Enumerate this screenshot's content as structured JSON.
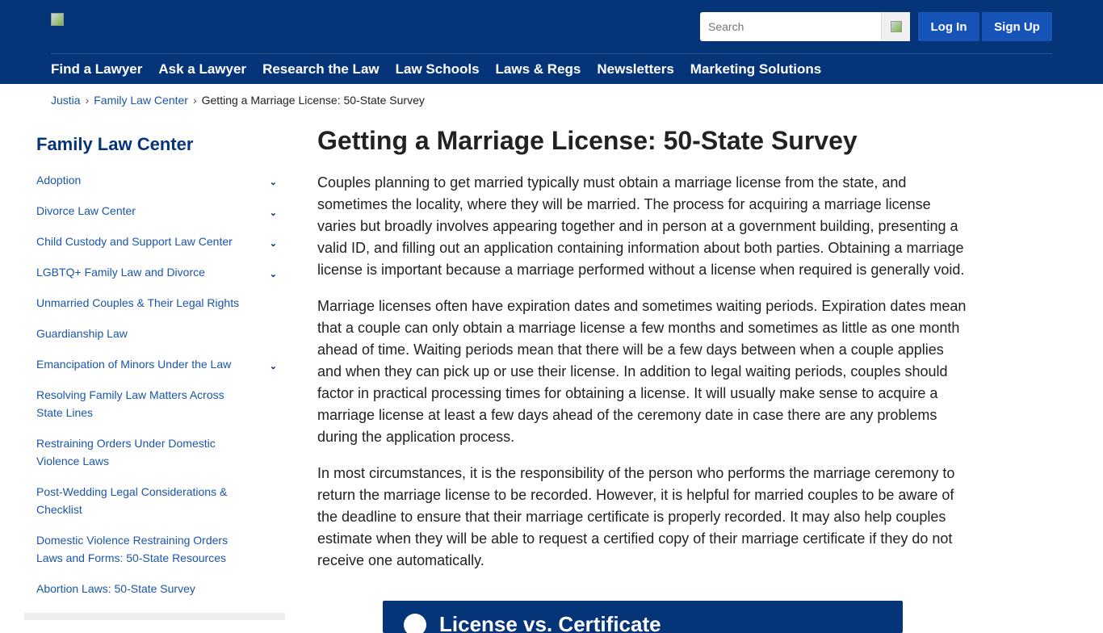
{
  "header": {
    "search_placeholder": "Search",
    "login": "Log In",
    "signup": "Sign Up",
    "nav": [
      "Find a Lawyer",
      "Ask a Lawyer",
      "Research the Law",
      "Law Schools",
      "Laws & Regs",
      "Newsletters",
      "Marketing Solutions"
    ]
  },
  "breadcrumb": [
    "Justia",
    "Family Law Center",
    "Getting a Marriage License: 50-State Survey"
  ],
  "sidebar": {
    "title": "Family Law Center",
    "items": [
      {
        "label": "Adoption",
        "expandable": true
      },
      {
        "label": "Divorce Law Center",
        "expandable": true
      },
      {
        "label": "Child Custody and Support Law Center",
        "expandable": true
      },
      {
        "label": "LGBTQ+ Family Law and Divorce",
        "expandable": true
      },
      {
        "label": "Unmarried Couples & Their Legal Rights",
        "expandable": false
      },
      {
        "label": "Guardianship Law",
        "expandable": false
      },
      {
        "label": "Emancipation of Minors Under the Law",
        "expandable": true
      },
      {
        "label": "Resolving Family Law Matters Across State Lines",
        "expandable": false
      },
      {
        "label": "Restraining Orders Under Domestic Violence Laws",
        "expandable": false
      },
      {
        "label": "Post-Wedding Legal Considerations & Checklist",
        "expandable": false
      },
      {
        "label": "Domestic Violence Restraining Orders Laws and Forms: 50-State Resources",
        "expandable": false
      },
      {
        "label": "Abortion Laws: 50-State Survey",
        "expandable": false
      }
    ]
  },
  "main": {
    "title": "Getting a Marriage License: 50-State Survey",
    "paragraphs": [
      "Couples planning to get married typically must obtain a marriage license from the state, and sometimes the locality, where they will be married. The process for acquiring a marriage license varies but broadly involves appearing together and in person at a government building, presenting a valid ID, and filling out an application containing information about both parties. Obtaining a marriage license is important because a marriage performed without a license when required is generally void.",
      "Marriage licenses often have expiration dates and sometimes waiting periods. Expiration dates mean that a couple can only obtain a marriage license a few months and sometimes as little as one month ahead of time. Waiting periods mean that there will be a few days between when a couple applies and when they can pick up or use their license. In addition to legal waiting periods, couples should factor in practical processing times for obtaining a license. It will usually make sense to acquire a marriage license at least a few days ahead of the ceremony date in case there are any problems during the application process.",
      "In most circumstances, it is the responsibility of the person who performs the marriage ceremony to return the marriage license to be recorded. However, it is helpful for married couples to be aware of the deadline to ensure that their marriage certificate is properly recorded. It may also help couples estimate when they will be able to request a certified copy of their marriage certificate if they do not receive one automatically."
    ],
    "box_title": "License vs. Certificate"
  }
}
